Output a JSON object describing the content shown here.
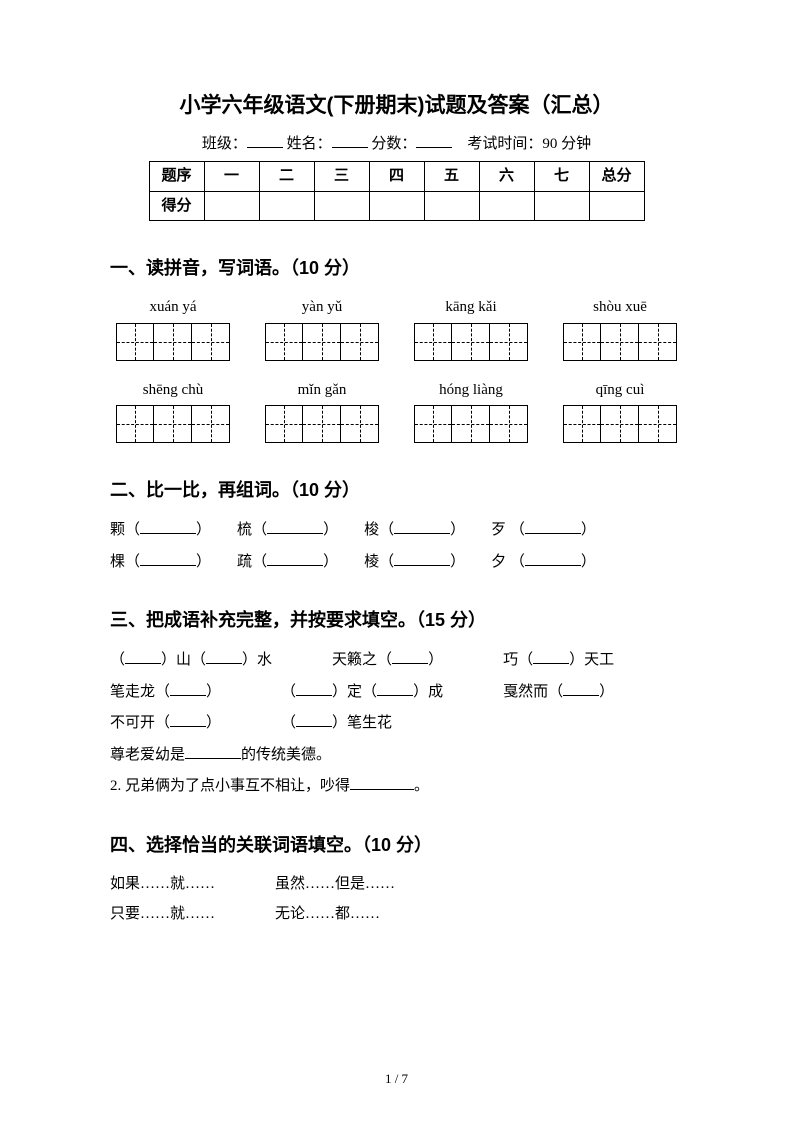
{
  "title": "小学六年级语文(下册期末)试题及答案（汇总）",
  "info": {
    "class_label": "班级：",
    "name_label": "姓名：",
    "score_label": "分数：",
    "time_label": "考试时间：90 分钟"
  },
  "score_table": {
    "row1": [
      "题序",
      "一",
      "二",
      "三",
      "四",
      "五",
      "六",
      "七",
      "总分"
    ],
    "row2_label": "得分"
  },
  "q1": {
    "title": "一、读拼音，写词语。（10 分）",
    "rows": [
      [
        "xuán yá",
        "yàn yǔ",
        "kāng kǎi",
        "shòu xuē"
      ],
      [
        "shēng chù",
        "mǐn gǎn",
        "hóng liàng",
        "qīng cuì"
      ]
    ],
    "cells_per_box": 3
  },
  "q2": {
    "title": "二、比一比，再组词。（10 分）",
    "rows": [
      [
        {
          "char": "颗",
          "open": "（",
          "close": "）"
        },
        {
          "char": "梳",
          "open": "（",
          "close": "）"
        },
        {
          "char": "梭",
          "open": "（",
          "close": "）"
        },
        {
          "char": "歹",
          "open": "（",
          "close": "）"
        }
      ],
      [
        {
          "char": "棵",
          "open": "（",
          "close": "）"
        },
        {
          "char": "疏",
          "open": "（",
          "close": "）"
        },
        {
          "char": "棱",
          "open": "（",
          "close": "）"
        },
        {
          "char": "夕",
          "open": "（",
          "close": "）"
        }
      ]
    ]
  },
  "q3": {
    "title": "三、把成语补充完整，并按要求填空。（15 分）",
    "rows": [
      [
        {
          "pre": "（",
          "mid1": "）山（",
          "mid2": "）水"
        },
        {
          "pre": "天籁之（",
          "mid1": "）"
        },
        {
          "pre": "巧（",
          "mid1": "）天工"
        }
      ],
      [
        {
          "pre": "笔走龙（",
          "mid1": "）"
        },
        {
          "pre": "（",
          "mid1": "）定（",
          "mid2": "）成"
        },
        {
          "pre": "戛然而（",
          "mid1": "）"
        }
      ],
      [
        {
          "pre": "不可开（",
          "mid1": "）"
        },
        {
          "pre": "（",
          "mid1": "）笔生花"
        }
      ]
    ],
    "line1": {
      "pre": "尊老爱幼是",
      "post": "的传统美德。"
    },
    "line2": {
      "pre": "2. 兄弟俩为了点小事互不相让，吵得",
      "post": "。"
    }
  },
  "q4": {
    "title": "四、选择恰当的关联词语填空。（10 分）",
    "options": [
      [
        "如果……就……",
        "虽然……但是……"
      ],
      [
        "只要……就……",
        "无论……都……"
      ]
    ]
  },
  "footer": "1 / 7",
  "colors": {
    "text": "#000000",
    "bg": "#ffffff"
  }
}
